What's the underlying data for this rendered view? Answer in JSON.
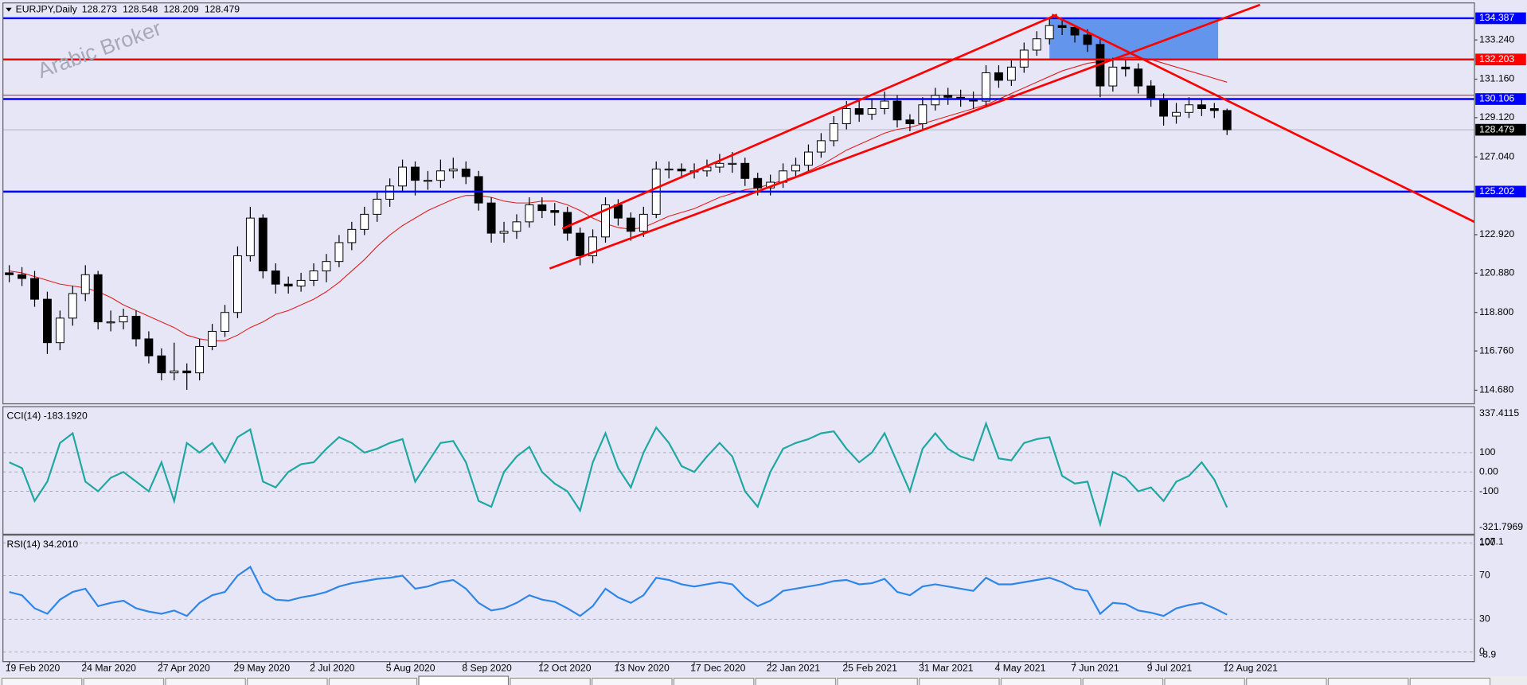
{
  "chart_data": [
    {
      "type": "candlestick",
      "title": "EURJPY,Daily",
      "ohlc_header": [
        128.273,
        128.548,
        128.209,
        128.479
      ],
      "watermark": "Arabic Broker",
      "xlim": [
        -0.5,
        115.5
      ],
      "xticks": [
        {
          "value": 0,
          "label": "19 Feb 2020"
        },
        {
          "value": 6,
          "label": "24 Mar 2020"
        },
        {
          "value": 12,
          "label": "27 Apr 2020"
        },
        {
          "value": 18,
          "label": "29 May 2020"
        },
        {
          "value": 24,
          "label": "2 Jul 2020"
        },
        {
          "value": 30,
          "label": "5 Aug 2020"
        },
        {
          "value": 36,
          "label": "8 Sep 2020"
        },
        {
          "value": 42,
          "label": "12 Oct 2020"
        },
        {
          "value": 48,
          "label": "13 Nov 2020"
        },
        {
          "value": 54,
          "label": "17 Dec 2020"
        },
        {
          "value": 60,
          "label": "22 Jan 2021"
        },
        {
          "value": 66,
          "label": "25 Feb 2021"
        },
        {
          "value": 72,
          "label": "31 Mar 2021"
        },
        {
          "value": 78,
          "label": "4 May 2021"
        },
        {
          "value": 84,
          "label": "7 Jun 2021"
        },
        {
          "value": 90,
          "label": "9 Jul 2021"
        },
        {
          "value": 96,
          "label": "12 Aug 2021"
        }
      ],
      "ylim": [
        113.96,
        135.2
      ],
      "yticks": [
        {
          "value": 133.24,
          "label": "133.240"
        },
        {
          "value": 131.16,
          "label": "131.160"
        },
        {
          "value": 129.12,
          "label": "129.120"
        },
        {
          "value": 127.04,
          "label": "127.040"
        },
        {
          "value": 122.92,
          "label": "122.920"
        },
        {
          "value": 120.88,
          "label": "120.880"
        },
        {
          "value": 118.8,
          "label": "118.800"
        },
        {
          "value": 116.76,
          "label": "116.760"
        },
        {
          "value": 114.68,
          "label": "114.680"
        }
      ],
      "up_color": "#ffffff",
      "down_color": "#000000",
      "open": [
        120.9,
        120.8,
        120.6,
        119.5,
        117.2,
        118.5,
        119.8,
        120.8,
        118.3,
        118.3,
        118.6,
        117.4,
        116.5,
        115.6,
        115.7,
        115.6,
        117.0,
        117.8,
        118.8,
        121.8,
        123.8,
        121.0,
        120.3,
        120.2,
        120.5,
        121.0,
        121.5,
        122.5,
        123.2,
        124.0,
        124.8,
        125.5,
        126.5,
        125.8,
        125.8,
        126.3,
        126.4,
        126.0,
        124.6,
        123.0,
        123.1,
        123.6,
        124.5,
        124.2,
        124.1,
        123.0,
        121.8,
        122.8,
        124.5,
        123.8,
        123.1,
        124.0,
        126.4,
        126.4,
        126.3,
        126.3,
        126.5,
        126.7,
        126.7,
        125.9,
        125.4,
        125.7,
        126.3,
        126.6,
        127.3,
        127.9,
        128.8,
        129.6,
        129.3,
        129.6,
        130.0,
        129.0,
        128.8,
        129.8,
        130.3,
        130.2,
        130.1,
        130.0,
        131.5,
        131.1,
        131.8,
        132.7,
        133.3,
        134.0,
        133.9,
        133.5,
        133.0,
        130.8,
        131.8,
        131.7,
        130.8,
        130.1,
        129.2,
        129.4,
        129.8,
        129.6,
        129.5
      ],
      "high": [
        121.3,
        121.2,
        121.0,
        119.9,
        118.9,
        120.2,
        121.3,
        121.0,
        118.9,
        119.0,
        118.9,
        117.8,
        116.9,
        117.2,
        116.1,
        117.4,
        118.2,
        119.2,
        122.3,
        124.4,
        124.0,
        121.4,
        120.7,
        120.9,
        121.4,
        121.9,
        122.9,
        123.6,
        124.4,
        125.2,
        125.9,
        126.9,
        126.8,
        126.3,
        126.9,
        127.0,
        126.8,
        126.3,
        124.9,
        123.6,
        124.0,
        124.9,
        124.9,
        124.6,
        124.4,
        123.3,
        123.2,
        124.9,
        124.8,
        124.1,
        124.4,
        126.8,
        126.8,
        126.7,
        126.7,
        126.9,
        127.2,
        127.3,
        127.0,
        126.2,
        126.1,
        126.7,
        127.0,
        127.7,
        128.3,
        129.2,
        130.0,
        130.0,
        130.1,
        130.5,
        130.3,
        129.3,
        130.2,
        130.7,
        130.7,
        130.6,
        130.5,
        131.9,
        131.9,
        132.2,
        133.1,
        133.7,
        134.4,
        134.4,
        134.0,
        133.8,
        133.3,
        132.3,
        132.2,
        132.0,
        131.1,
        130.4,
        129.9,
        130.2,
        130.1,
        129.9,
        129.6
      ],
      "low": [
        120.4,
        120.2,
        119.1,
        116.6,
        116.8,
        118.1,
        119.4,
        117.9,
        117.8,
        117.9,
        117.0,
        116.1,
        115.2,
        115.2,
        114.7,
        115.2,
        116.8,
        117.5,
        118.5,
        121.5,
        120.6,
        119.8,
        119.8,
        119.9,
        120.2,
        120.4,
        121.2,
        122.1,
        122.9,
        123.6,
        124.4,
        125.2,
        125.0,
        125.3,
        125.4,
        125.9,
        125.6,
        124.2,
        122.5,
        122.5,
        122.7,
        123.3,
        123.8,
        123.4,
        122.6,
        121.3,
        121.4,
        122.5,
        123.4,
        122.6,
        122.8,
        123.8,
        125.9,
        125.9,
        125.9,
        126.0,
        126.2,
        126.2,
        125.5,
        125.0,
        125.0,
        125.4,
        126.0,
        126.3,
        127.0,
        127.6,
        128.5,
        128.9,
        129.0,
        129.3,
        128.6,
        128.4,
        128.5,
        129.5,
        129.8,
        129.7,
        129.6,
        129.7,
        130.7,
        130.8,
        131.5,
        132.4,
        133.0,
        133.5,
        133.1,
        132.6,
        130.2,
        130.5,
        131.3,
        130.4,
        129.7,
        128.7,
        128.8,
        129.1,
        129.2,
        129.1,
        128.2
      ],
      "close": [
        120.8,
        120.6,
        119.5,
        117.2,
        118.5,
        119.8,
        120.8,
        118.3,
        118.3,
        118.6,
        117.4,
        116.5,
        115.6,
        115.7,
        115.6,
        117.0,
        117.8,
        118.8,
        121.8,
        123.8,
        121.0,
        120.3,
        120.2,
        120.5,
        121.0,
        121.5,
        122.5,
        123.2,
        124.0,
        124.8,
        125.5,
        126.5,
        125.8,
        125.8,
        126.3,
        126.4,
        126.0,
        124.6,
        123.0,
        123.1,
        123.6,
        124.5,
        124.2,
        124.1,
        123.0,
        121.8,
        122.8,
        124.5,
        123.8,
        123.1,
        124.0,
        126.4,
        126.4,
        126.3,
        126.3,
        126.5,
        126.7,
        126.7,
        125.9,
        125.4,
        125.7,
        126.3,
        126.6,
        127.3,
        127.9,
        128.8,
        129.6,
        129.3,
        129.6,
        130.0,
        129.0,
        128.8,
        129.8,
        130.3,
        130.2,
        130.1,
        130.0,
        131.5,
        131.1,
        131.8,
        132.7,
        133.3,
        134.0,
        133.9,
        133.5,
        133.0,
        130.8,
        131.8,
        131.7,
        130.8,
        130.1,
        129.2,
        129.4,
        129.8,
        129.6,
        129.5,
        128.479
      ],
      "moving_average": {
        "color": "#e02020",
        "values": [
          121.0,
          120.9,
          120.7,
          120.5,
          120.3,
          120.2,
          120.1,
          119.9,
          119.6,
          119.2,
          118.9,
          118.6,
          118.3,
          118.0,
          117.6,
          117.4,
          117.3,
          117.3,
          117.6,
          118.0,
          118.3,
          118.7,
          118.9,
          119.2,
          119.5,
          119.9,
          120.4,
          121.0,
          121.6,
          122.3,
          122.9,
          123.4,
          123.8,
          124.2,
          124.5,
          124.8,
          125.0,
          125.0,
          124.9,
          124.7,
          124.6,
          124.6,
          124.7,
          124.7,
          124.5,
          124.2,
          123.8,
          123.5,
          123.3,
          123.2,
          123.3,
          123.6,
          123.9,
          124.1,
          124.3,
          124.6,
          124.9,
          125.1,
          125.3,
          125.4,
          125.6,
          125.8,
          126.0,
          126.3,
          126.6,
          127.0,
          127.4,
          127.7,
          128.0,
          128.3,
          128.5,
          128.6,
          128.8,
          129.0,
          129.2,
          129.4,
          129.6,
          129.8,
          130.1,
          130.4,
          130.7,
          131.0,
          131.3,
          131.6,
          131.8,
          132.0,
          132.1,
          132.2,
          132.3,
          132.3,
          132.2,
          132.0,
          131.8,
          131.6,
          131.4,
          131.2,
          131.0
        ]
      },
      "levels": [
        {
          "value": 134.387,
          "color": "#0000ff"
        },
        {
          "value": 132.203,
          "color": "#ff0000"
        },
        {
          "value": 130.106,
          "color": "#0000ff"
        },
        {
          "value": 125.202,
          "color": "#0000ff"
        }
      ],
      "thin_level": {
        "value": 130.31,
        "color": "#ff0000"
      },
      "last_price": 128.479,
      "trendlines": [
        {
          "color": "#ff0000",
          "points": [
            [
              42.6,
              121.13
            ],
            [
              98.6,
              135.1
            ]
          ]
        },
        {
          "color": "#ff0000",
          "points": [
            [
              43.6,
              123.24
            ],
            [
              82.6,
              134.58
            ]
          ]
        },
        {
          "color": "#ff0000",
          "points": [
            [
              82.2,
              134.58
            ],
            [
              115.5,
              123.6
            ]
          ]
        }
      ],
      "rectangle": {
        "color": "#6495ed",
        "x": [
          82.0,
          95.3
        ],
        "y": [
          132.203,
          134.387
        ]
      }
    },
    {
      "type": "line",
      "title": "CCI(14) -183.1920",
      "color": "#20a8a0",
      "ylim": [
        -321.7969,
        337.4115
      ],
      "yticks": [
        100,
        {
          "value": 0,
          "label": "0.00"
        },
        -100
      ],
      "values": [
        50,
        20,
        -150,
        -50,
        150,
        200,
        -50,
        -100,
        -30,
        0,
        -50,
        -100,
        50,
        -150,
        150,
        100,
        150,
        50,
        180,
        220,
        -50,
        -80,
        0,
        40,
        50,
        120,
        180,
        150,
        100,
        120,
        150,
        170,
        -50,
        50,
        150,
        160,
        50,
        -150,
        -180,
        0,
        80,
        130,
        0,
        -60,
        -100,
        -200,
        50,
        200,
        20,
        -80,
        100,
        230,
        150,
        30,
        0,
        80,
        150,
        80,
        -100,
        -180,
        0,
        120,
        150,
        170,
        200,
        210,
        120,
        50,
        100,
        200,
        50,
        -100,
        120,
        200,
        120,
        80,
        60,
        250,
        70,
        60,
        150,
        170,
        180,
        -20,
        -60,
        -50,
        -270,
        0,
        -30,
        -100,
        -80,
        -150,
        -50,
        -20,
        50,
        -40,
        -183.192
      ]
    },
    {
      "type": "line",
      "title": "RSI(14) 34.2010",
      "color": "#2f86e6",
      "ylim": [
        -8.9,
        107.1
      ],
      "yticks": [
        100,
        70,
        30,
        0
      ],
      "values": [
        55,
        52,
        40,
        35,
        48,
        55,
        58,
        42,
        45,
        47,
        40,
        37,
        35,
        38,
        33,
        45,
        52,
        55,
        70,
        78,
        55,
        48,
        47,
        50,
        52,
        55,
        60,
        63,
        65,
        67,
        68,
        70,
        58,
        60,
        64,
        66,
        58,
        45,
        38,
        40,
        45,
        52,
        48,
        46,
        40,
        33,
        42,
        58,
        50,
        45,
        52,
        68,
        66,
        62,
        60,
        62,
        64,
        62,
        50,
        42,
        47,
        56,
        58,
        60,
        62,
        65,
        66,
        62,
        63,
        67,
        55,
        52,
        60,
        62,
        60,
        58,
        56,
        68,
        62,
        62,
        64,
        66,
        68,
        64,
        58,
        56,
        35,
        45,
        44,
        38,
        36,
        33,
        40,
        43,
        45,
        40,
        34.201
      ]
    }
  ]
}
